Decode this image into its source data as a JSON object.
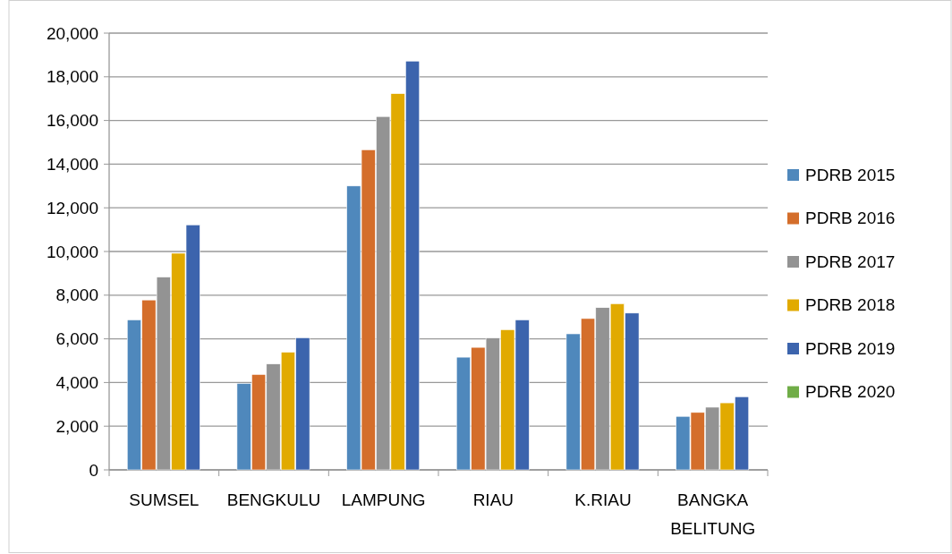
{
  "chart_data": {
    "type": "bar",
    "categories": [
      "SUMSEL",
      "BENGKULU",
      "LAMPUNG",
      "RIAU",
      "K.RIAU",
      "BANGKA BELITUNG"
    ],
    "series": [
      {
        "name": "PDRB 2015",
        "color": "#4f88bc",
        "values": [
          6870,
          3960,
          13000,
          5160,
          6230,
          2450
        ]
      },
      {
        "name": "PDRB 2016",
        "color": "#d46e2b",
        "values": [
          7780,
          4370,
          14660,
          5610,
          6930,
          2630
        ]
      },
      {
        "name": "PDRB 2017",
        "color": "#939393",
        "values": [
          8830,
          4850,
          16180,
          6040,
          7430,
          2870
        ]
      },
      {
        "name": "PDRB 2018",
        "color": "#e1aa00",
        "values": [
          9920,
          5390,
          17230,
          6420,
          7610,
          3070
        ]
      },
      {
        "name": "PDRB 2019",
        "color": "#3c64ad",
        "values": [
          11220,
          6050,
          18720,
          6870,
          7180,
          3350
        ]
      },
      {
        "name": "PDRB 2020",
        "color": "#70ad47",
        "values": [
          null,
          null,
          null,
          null,
          null,
          null
        ]
      }
    ],
    "ylim": [
      0,
      20000
    ],
    "yticks": [
      {
        "value": 0,
        "label": "0"
      },
      {
        "value": 2000,
        "label": "2,000"
      },
      {
        "value": 4000,
        "label": "4,000"
      },
      {
        "value": 6000,
        "label": "6,000"
      },
      {
        "value": 8000,
        "label": "8,000"
      },
      {
        "value": 10000,
        "label": "10,000"
      },
      {
        "value": 12000,
        "label": "12,000"
      },
      {
        "value": 14000,
        "label": "14,000"
      },
      {
        "value": 16000,
        "label": "16,000"
      },
      {
        "value": 18000,
        "label": "18,000"
      },
      {
        "value": 20000,
        "label": "20,000"
      }
    ],
    "grid": "y",
    "legend": "right"
  }
}
